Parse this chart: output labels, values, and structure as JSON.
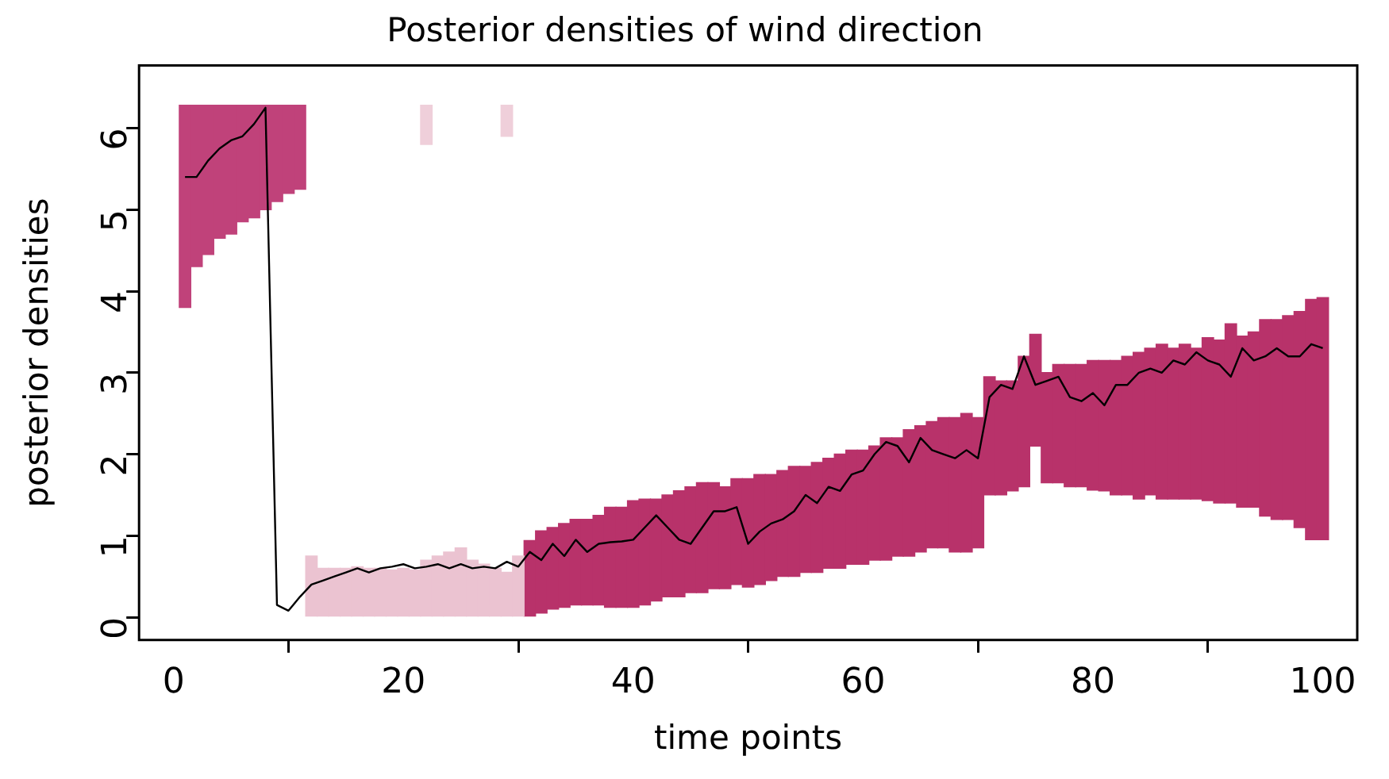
{
  "chart_data": {
    "type": "bar",
    "title": "Posterior densities of wind direction",
    "xlabel": "time points",
    "ylabel": "posterior densities",
    "xlim": [
      -3,
      103
    ],
    "ylim": [
      -0.28,
      6.77
    ],
    "xticks": [
      0,
      20,
      40,
      60,
      80,
      100
    ],
    "yticks": [
      0,
      1,
      2,
      3,
      4,
      5,
      6
    ],
    "grid": false,
    "legend": false,
    "series": [
      {
        "color": "#c0427a",
        "x": [
          1,
          2,
          3,
          4,
          5,
          6,
          7,
          8,
          9,
          10,
          11
        ],
        "base": [
          3.8,
          4.3,
          4.45,
          4.65,
          4.7,
          4.85,
          4.9,
          5.0,
          5.1,
          5.2,
          5.25
        ],
        "values": [
          2.48,
          1.98,
          1.83,
          1.63,
          1.58,
          1.43,
          1.38,
          1.28,
          1.18,
          1.08,
          1.03
        ]
      },
      {
        "color": "#ebc3d1",
        "x": [
          12,
          13,
          14,
          15,
          16,
          17,
          18,
          19,
          20,
          21,
          22,
          23,
          24,
          25,
          26,
          27,
          28,
          29,
          30
        ],
        "base": [
          0,
          0,
          0,
          0,
          0,
          0,
          0,
          0,
          0,
          0,
          0,
          0,
          0,
          0,
          0,
          0,
          0,
          0,
          0
        ],
        "values": [
          0.75,
          0.6,
          0.6,
          0.6,
          0.62,
          0.6,
          0.6,
          0.58,
          0.6,
          0.58,
          0.7,
          0.75,
          0.8,
          0.85,
          0.7,
          0.65,
          0.6,
          0.55,
          0.75
        ]
      },
      {
        "color": "#efcfda",
        "x": [
          22,
          29
        ],
        "base": [
          5.8,
          5.9
        ],
        "values": [
          0.48,
          0.38
        ]
      },
      {
        "color": "#b8326a",
        "x": [
          31,
          32,
          33,
          34,
          35,
          36,
          37,
          38,
          39,
          40,
          41,
          42,
          43,
          44,
          45,
          46,
          47,
          48,
          49,
          50,
          51,
          52,
          53,
          54,
          55,
          56,
          57,
          58,
          59,
          60,
          61,
          62,
          63,
          64,
          65,
          66,
          67,
          68,
          69,
          70,
          71,
          72,
          73,
          74,
          75,
          76,
          77,
          78,
          79,
          80,
          81,
          82,
          83,
          84,
          85,
          86,
          87,
          88,
          89,
          90,
          91,
          92,
          93,
          94,
          95,
          96,
          97,
          98,
          99,
          100
        ],
        "base": [
          0,
          0.05,
          0.1,
          0.12,
          0.15,
          0.15,
          0.15,
          0.12,
          0.12,
          0.12,
          0.15,
          0.2,
          0.25,
          0.25,
          0.3,
          0.3,
          0.35,
          0.35,
          0.4,
          0.37,
          0.4,
          0.45,
          0.5,
          0.5,
          0.55,
          0.55,
          0.6,
          0.6,
          0.65,
          0.65,
          0.7,
          0.7,
          0.75,
          0.75,
          0.8,
          0.85,
          0.85,
          0.8,
          0.8,
          0.85,
          1.5,
          1.5,
          1.55,
          1.6,
          2.1,
          1.65,
          1.65,
          1.6,
          1.6,
          1.56,
          1.55,
          1.5,
          1.5,
          1.45,
          1.5,
          1.45,
          1.45,
          1.45,
          1.45,
          1.43,
          1.4,
          1.4,
          1.35,
          1.35,
          1.24,
          1.2,
          1.2,
          1.1,
          0.95,
          0.95
        ],
        "values": [
          0.94,
          1.01,
          1.0,
          1.03,
          1.05,
          1.05,
          1.1,
          1.23,
          1.23,
          1.31,
          1.3,
          1.25,
          1.25,
          1.3,
          1.3,
          1.35,
          1.3,
          1.25,
          1.3,
          1.33,
          1.35,
          1.3,
          1.3,
          1.35,
          1.3,
          1.35,
          1.35,
          1.4,
          1.4,
          1.4,
          1.4,
          1.5,
          1.45,
          1.55,
          1.55,
          1.55,
          1.6,
          1.65,
          1.7,
          1.6,
          1.45,
          1.4,
          1.35,
          1.6,
          1.37,
          1.35,
          1.45,
          1.5,
          1.5,
          1.59,
          1.6,
          1.65,
          1.7,
          1.8,
          1.8,
          1.9,
          1.85,
          1.9,
          1.85,
          2.0,
          2.0,
          2.2,
          2.1,
          2.15,
          2.41,
          2.45,
          2.5,
          2.65,
          2.95,
          2.97
        ]
      },
      {
        "type": "line",
        "color": "#000000",
        "marker": "none",
        "line_style": "solid",
        "x": [
          1,
          2,
          3,
          4,
          5,
          6,
          7,
          8,
          9,
          10,
          11,
          12,
          13,
          14,
          15,
          16,
          17,
          18,
          19,
          20,
          21,
          22,
          23,
          24,
          25,
          26,
          27,
          28,
          29,
          30,
          31,
          32,
          33,
          34,
          35,
          36,
          37,
          38,
          39,
          40,
          41,
          42,
          43,
          44,
          45,
          46,
          47,
          48,
          49,
          50,
          51,
          52,
          53,
          54,
          55,
          56,
          57,
          58,
          59,
          60,
          61,
          62,
          63,
          64,
          65,
          66,
          67,
          68,
          69,
          70,
          71,
          72,
          73,
          74,
          75,
          76,
          77,
          78,
          79,
          80,
          81,
          82,
          83,
          84,
          85,
          86,
          87,
          88,
          89,
          90,
          91,
          92,
          93,
          94,
          95,
          96,
          97,
          98,
          99,
          100
        ],
        "values": [
          5.4,
          5.4,
          5.6,
          5.75,
          5.85,
          5.9,
          6.05,
          6.25,
          0.15,
          0.08,
          0.25,
          0.4,
          0.45,
          0.5,
          0.55,
          0.6,
          0.55,
          0.6,
          0.62,
          0.65,
          0.6,
          0.62,
          0.65,
          0.6,
          0.65,
          0.6,
          0.62,
          0.6,
          0.68,
          0.62,
          0.8,
          0.7,
          0.9,
          0.75,
          0.95,
          0.8,
          0.9,
          0.92,
          0.93,
          0.95,
          1.1,
          1.25,
          1.1,
          0.95,
          0.9,
          1.1,
          1.3,
          1.3,
          1.35,
          0.9,
          1.05,
          1.15,
          1.2,
          1.3,
          1.5,
          1.4,
          1.6,
          1.55,
          1.75,
          1.8,
          2.0,
          2.15,
          2.1,
          1.9,
          2.2,
          2.05,
          2.0,
          1.95,
          2.05,
          1.95,
          2.7,
          2.85,
          2.8,
          3.2,
          2.85,
          2.9,
          2.95,
          2.7,
          2.65,
          2.75,
          2.6,
          2.85,
          2.85,
          3.0,
          3.05,
          3.0,
          3.15,
          3.1,
          3.25,
          3.15,
          3.1,
          2.95,
          3.3,
          3.15,
          3.2,
          3.3,
          3.2,
          3.2,
          3.35,
          3.3
        ]
      }
    ]
  }
}
